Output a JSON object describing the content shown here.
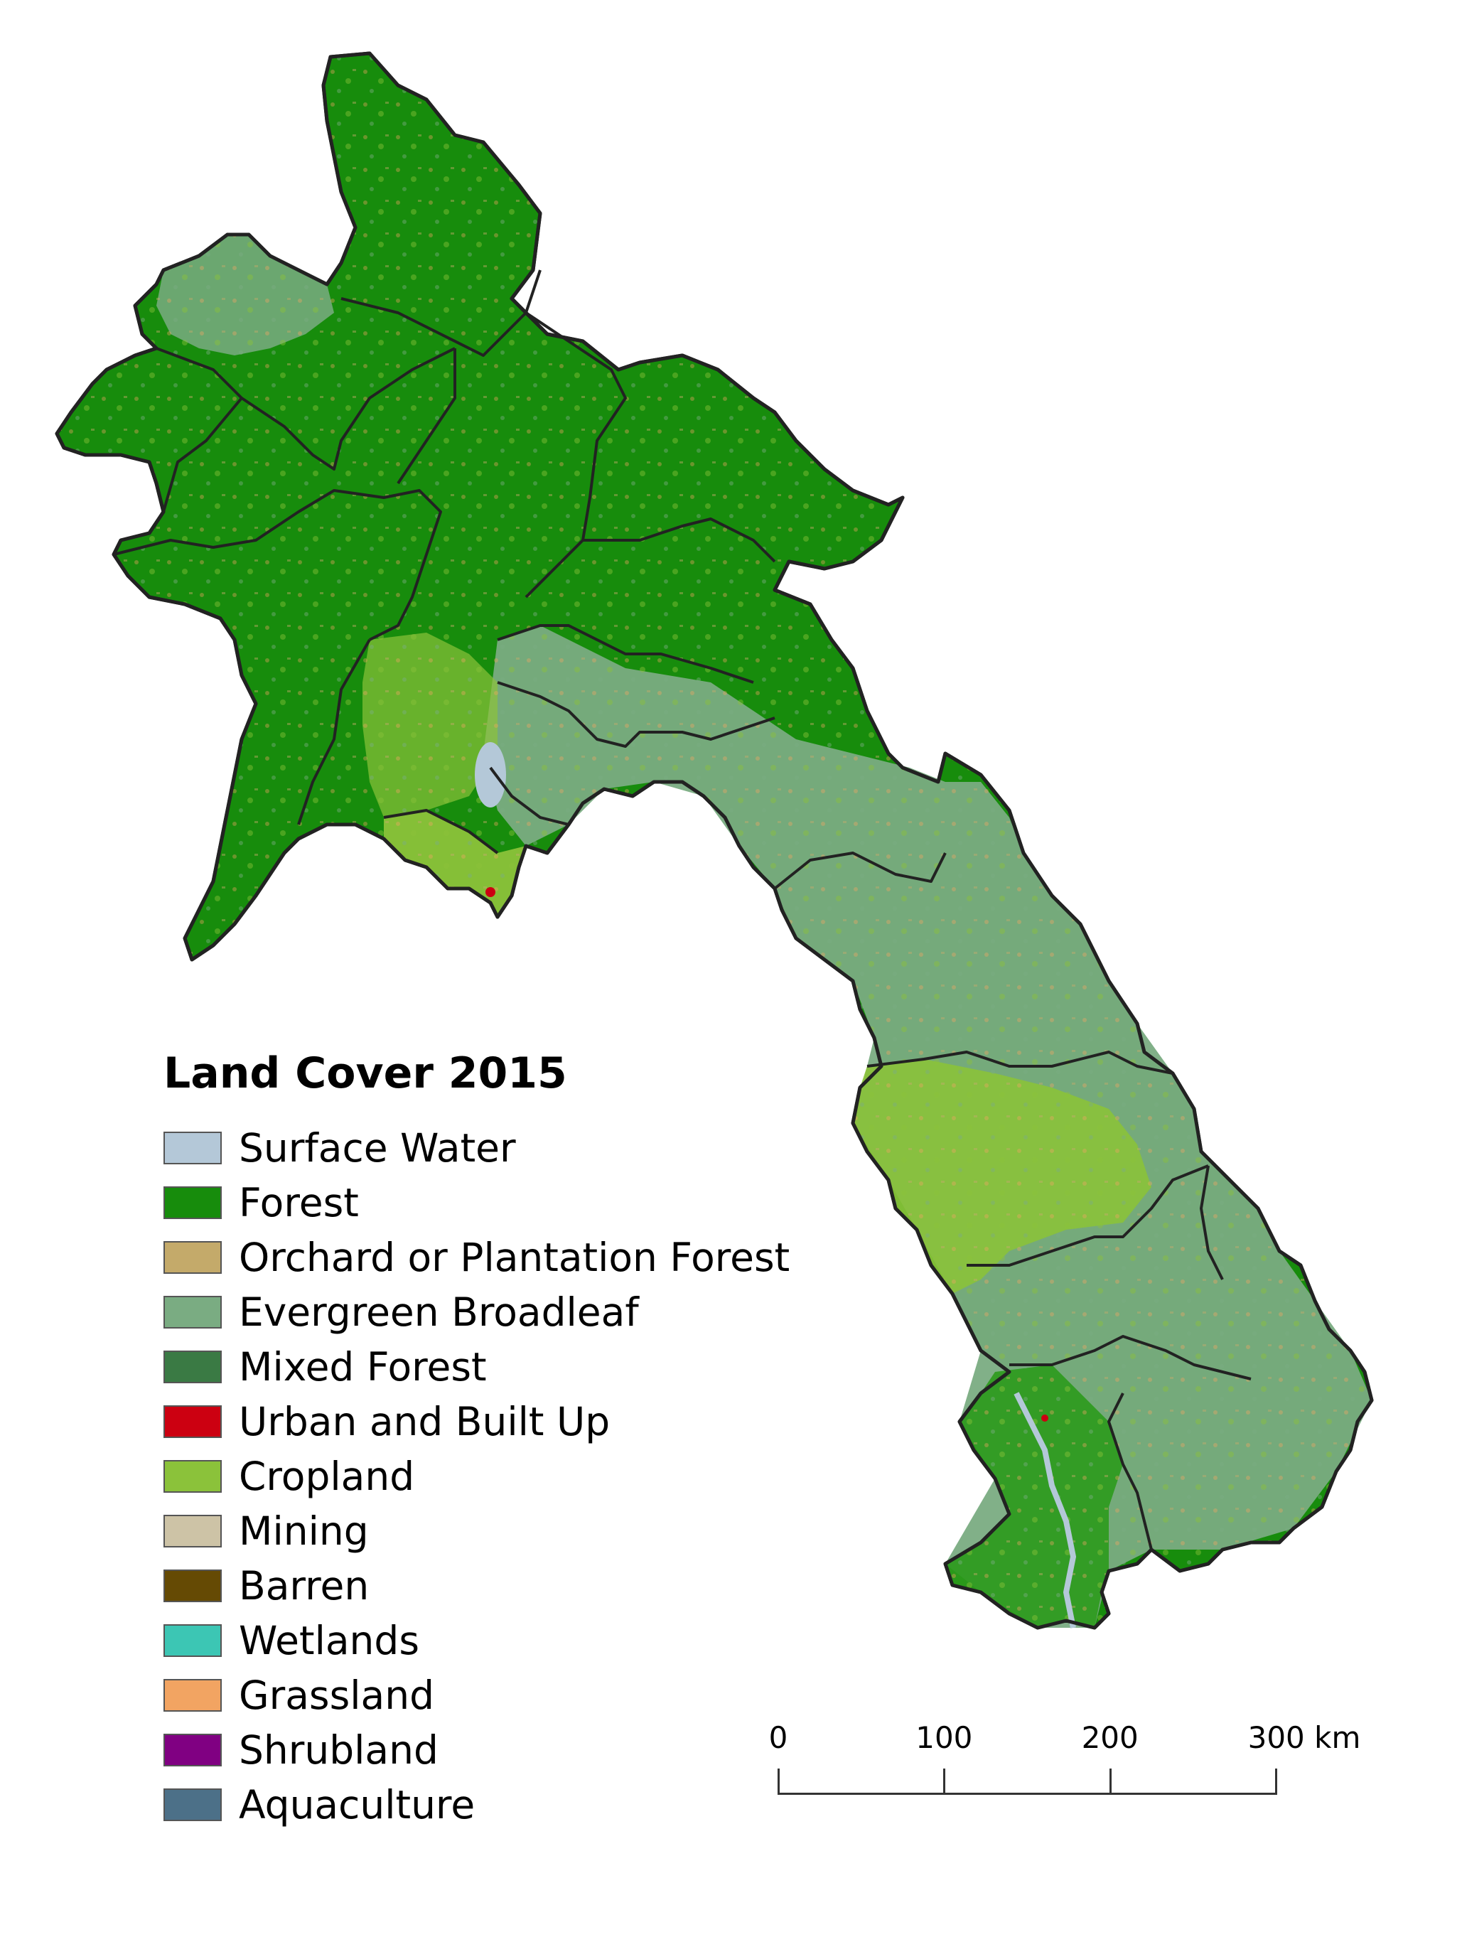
{
  "map": {
    "colors": {
      "forest": "#178c0c",
      "forest_light": "#2c9a1c",
      "evergreen": "#7aac82",
      "mixed": "#3a7a44",
      "cropland": "#8bc23a",
      "orchard": "#c4aa6a",
      "grassland": "#f2a462",
      "water": "#b4c8d8",
      "urban": "#cc0011",
      "border": "#222222"
    }
  },
  "legend": {
    "title": "Land Cover 2015",
    "items": [
      {
        "label": "Surface Water",
        "color": "#b4c8d8"
      },
      {
        "label": "Forest",
        "color": "#178c0c"
      },
      {
        "label": "Orchard or Plantation Forest",
        "color": "#c4aa6a"
      },
      {
        "label": "Evergreen Broadleaf",
        "color": "#7aac82"
      },
      {
        "label": "Mixed Forest",
        "color": "#3a7a44"
      },
      {
        "label": "Urban and Built Up",
        "color": "#cc0011"
      },
      {
        "label": "Cropland",
        "color": "#8bc23a"
      },
      {
        "label": "Mining",
        "color": "#cdc3a6"
      },
      {
        "label": "Barren",
        "color": "#654a04"
      },
      {
        "label": "Wetlands",
        "color": "#3cc6b4"
      },
      {
        "label": "Grassland",
        "color": "#f2a462"
      },
      {
        "label": "Shrubland",
        "color": "#800082"
      },
      {
        "label": "Aquaculture",
        "color": "#4c7088"
      }
    ]
  },
  "scalebar": {
    "ticks": [
      "0",
      "100",
      "200",
      "300 km"
    ],
    "unit": "km"
  }
}
